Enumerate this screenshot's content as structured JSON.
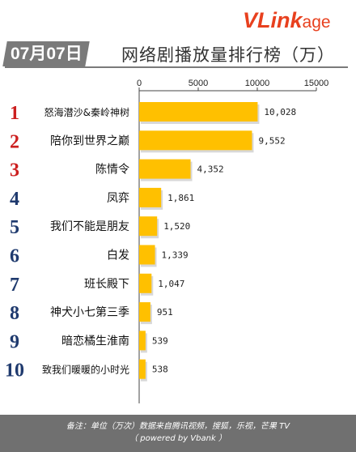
{
  "header": {
    "date": "07月07日",
    "title": "网络剧播放量排行榜（万）",
    "brand_v": "V",
    "brand_link": "Link",
    "brand_age": "age"
  },
  "footer": {
    "line1": "备注：单位（万次）数据来自腾讯视频，搜狐，乐视，芒果 TV",
    "line2": "（ powered by Vbank ）"
  },
  "colors": {
    "bar": "#ffc000",
    "rank_top": "#cc1f1f",
    "rank_other": "#1f3a6e"
  },
  "chart_data": {
    "type": "bar",
    "orientation": "horizontal",
    "categories": [
      "怒海潜沙&秦岭神树",
      "陪你到世界之巅",
      "陈情令",
      "凤弈",
      "我们不能是朋友",
      "白发",
      "班长殿下",
      "神犬小七第三季",
      "暗恋橘生淮南",
      "致我们暖暖的小时光"
    ],
    "ranks": [
      "1",
      "2",
      "3",
      "4",
      "5",
      "6",
      "7",
      "8",
      "9",
      "10"
    ],
    "values": [
      10028,
      9552,
      4352,
      1861,
      1520,
      1339,
      1047,
      951,
      539,
      538
    ],
    "value_labels": [
      "10,028",
      "9,552",
      "4,352",
      "1,861",
      "1,520",
      "1,339",
      "1,047",
      "951",
      "539",
      "538"
    ],
    "xlim": [
      0,
      15000
    ],
    "ticks": [
      "0",
      "5000",
      "10000",
      "15000"
    ],
    "tick_values": [
      0,
      5000,
      10000,
      15000
    ],
    "axis_position": "top",
    "grid": false
  }
}
